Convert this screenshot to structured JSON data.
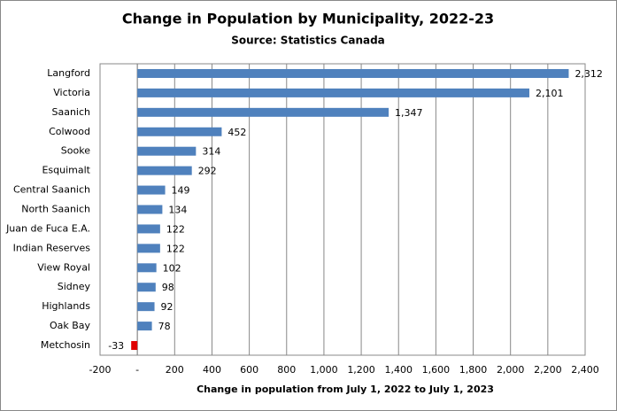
{
  "chart_data": {
    "type": "hbar",
    "title": "Change in Population  by Municipality,  2022-23",
    "subtitle": "Source: Statistics Canada",
    "x_label": "Change in population  from July 1, 2022 to July 1, 2023",
    "categories": [
      "Langford",
      "Victoria",
      "Saanich",
      "Colwood",
      "Sooke",
      "Esquimalt",
      "Central Saanich",
      "North Saanich",
      "Juan de Fuca E.A.",
      "Indian Reserves",
      "View Royal",
      "Sidney",
      "Highlands",
      "Oak Bay",
      "Metchosin"
    ],
    "values": [
      2312,
      2101,
      1347,
      452,
      314,
      292,
      149,
      134,
      122,
      122,
      102,
      98,
      92,
      78,
      -33
    ],
    "value_labels": [
      "2,312",
      "2,101",
      "1,347",
      "452",
      "314",
      "292",
      "149",
      "134",
      "122",
      "122",
      "102",
      "98",
      "92",
      "78",
      "-33"
    ],
    "color": "#4f81bd",
    "negative_color": "#e00000",
    "xlim": [
      -200,
      2400
    ],
    "xticks": [
      -200,
      {
        "value": 0,
        "label": "-"
      },
      200,
      400,
      600,
      800,
      {
        "value": 1000,
        "label": "1,000"
      },
      {
        "value": 1200,
        "label": "1,200"
      },
      {
        "value": 1400,
        "label": "1,400"
      },
      {
        "value": 1600,
        "label": "1,600"
      },
      {
        "value": 1800,
        "label": "1,800"
      },
      {
        "value": 2000,
        "label": "2,000"
      },
      {
        "value": 2200,
        "label": "2,200"
      },
      {
        "value": 2400,
        "label": "2,400"
      }
    ],
    "grid": true
  }
}
